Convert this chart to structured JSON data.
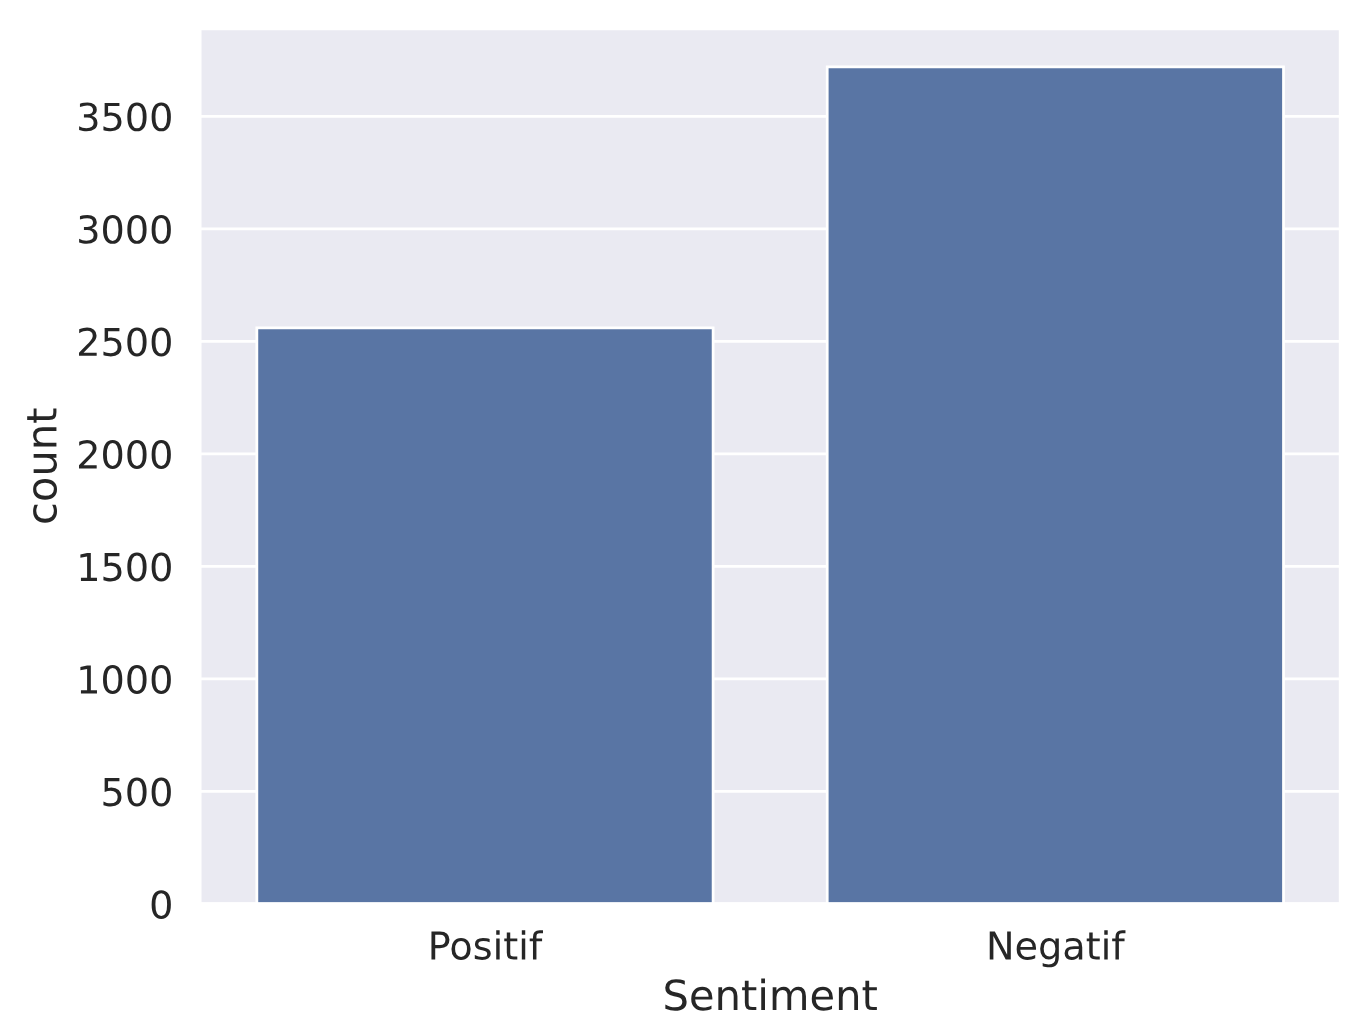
{
  "chart_data": {
    "type": "bar",
    "xlabel": "Sentiment",
    "ylabel": "count",
    "categories": [
      "Positif",
      "Negatif"
    ],
    "values": [
      2560,
      3720
    ],
    "color": "#5975a4",
    "ylim": [
      0,
      3890
    ],
    "yticks": [
      0,
      500,
      1000,
      1500,
      2000,
      2500,
      3000,
      3500
    ],
    "grid": "y"
  }
}
